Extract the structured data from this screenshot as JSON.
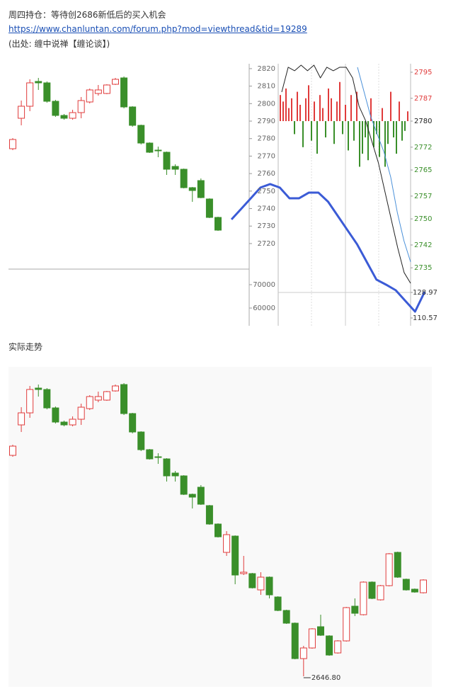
{
  "header": {
    "title": "周四持仓：等待创2686新低后的买入机会",
    "link": "https://www.chanluntan.com/forum.php?mod=viewthread&tid=19289",
    "source": "(出处: 缠中说禅【缠论谈】)"
  },
  "section_label": "实际走势",
  "chart_data": [
    {
      "type": "intraday",
      "ylim": [
        2705.4,
        2822.8
      ],
      "yticks": [
        2820,
        2810,
        2800,
        2790,
        2780,
        2770,
        2760,
        2750,
        2740,
        2730,
        2720
      ],
      "y2lim": [
        2734.6,
        2797.6
      ],
      "y2ticks": [
        2795,
        2787,
        2780,
        2772,
        2765,
        2757,
        2750,
        2742,
        2735
      ],
      "histogram_base": 2780,
      "volume_lim": [
        52424,
        76667
      ],
      "volume_ticks": [
        70000,
        60000
      ],
      "y2_lower_lim": [
        104.95,
        145.8
      ],
      "y2_lower_ticks": [
        128.97,
        110.57
      ],
      "up_color": "#e03b3b",
      "down_color": "#3a8f2a",
      "forecast_line": {
        "color": "#3b5bd6",
        "values": [
          2733.8,
          2739.8,
          2745.9,
          2752.0,
          2754.0,
          2752.0,
          2745.9,
          2745.9,
          2749.1,
          2749.1,
          2743.9,
          2735.8,
          2727.7,
          2719.6,
          2709.5,
          2699.4,
          2696.5,
          2693.3,
          2687.2,
          2681.1,
          2692.5
        ]
      },
      "price_line": {
        "color": "#222222",
        "values": [
          2806.6,
          2820.8,
          2818.8,
          2822.0,
          2818.8,
          2822.0,
          2814.7,
          2820.8,
          2818.8,
          2820.8,
          2820.8,
          2814.7,
          2798.5,
          2790.4,
          2778.3,
          2766.2,
          2750.0,
          2733.8,
          2717.6,
          2703.4,
          2697.3
        ]
      },
      "avg_line": {
        "color": "#4a90d9",
        "values": [
          2820.8,
          2806.6,
          2792.5,
          2782.3,
          2772.2,
          2758.1,
          2737.8,
          2721.6,
          2709.5
        ]
      },
      "histogram": {
        "values": [
          2788,
          2786,
          2790,
          2784,
          2787,
          2776,
          2789,
          2785,
          2772,
          2787,
          2791,
          2774,
          2786,
          2770,
          2788,
          2784,
          2775,
          2790,
          2787,
          2773,
          2786,
          2792,
          2776,
          2785,
          2771,
          2788,
          2774,
          2789,
          2766,
          2770,
          2775,
          2768,
          2787,
          2772,
          2776,
          2769,
          2784,
          2766,
          2773,
          2789,
          2775,
          2770,
          2786,
          2774,
          2777,
          2783
        ]
      }
    },
    {
      "type": "candlestick",
      "up_color": "#e03b3b",
      "down_color": "#3a8f2a",
      "open": [
        2771.6,
        2788.8,
        2795.6,
        2809.6,
        2808.8,
        2798.4,
        2790.4,
        2788.8,
        2792.0,
        2798.0,
        2802.8,
        2802.8,
        2808.0,
        2811.6,
        2795.2,
        2784.8,
        2774.8,
        2770.8,
        2769.6,
        2761.6,
        2760.0,
        2749.6,
        2753.6,
        2743.2,
        2732.8,
        2716.8,
        2726.0,
        2704.8,
        2704.8,
        2695.6,
        2702.8,
        2691.6,
        2684.0,
        2676.8,
        2656.8,
        2662.8,
        2674.8,
        2669.6,
        2660.0,
        2666.8,
        2686.4,
        2681.6,
        2700.0,
        2690.0,
        2698.0,
        2716.8,
        2701.6,
        2696.0,
        2694.0
      ],
      "high": [
        2777.6,
        2798.8,
        2810.8,
        2811.6,
        2809.6,
        2799.2,
        2791.2,
        2793.6,
        2800.8,
        2805.6,
        2807.6,
        2808.0,
        2811.6,
        2812.4,
        2795.6,
        2785.2,
        2775.2,
        2772.8,
        2770.0,
        2762.8,
        2760.4,
        2750.0,
        2754.8,
        2743.6,
        2733.2,
        2728.8,
        2726.4,
        2714.8,
        2705.2,
        2705.6,
        2703.2,
        2692.0,
        2684.4,
        2677.2,
        2664.0,
        2674.0,
        2681.6,
        2670.0,
        2667.2,
        2686.0,
        2690.8,
        2700.4,
        2700.4,
        2698.4,
        2716.4,
        2717.2,
        2702.0,
        2696.4,
        2701.6
      ],
      "low": [
        2770.8,
        2784.8,
        2792.8,
        2804.8,
        2797.6,
        2789.6,
        2788.0,
        2788.0,
        2788.8,
        2797.2,
        2801.6,
        2802.4,
        2807.6,
        2794.4,
        2784.0,
        2774.0,
        2769.2,
        2766.8,
        2756.8,
        2756.8,
        2749.2,
        2741.6,
        2743.6,
        2732.4,
        2725.2,
        2714.8,
        2698.8,
        2704.0,
        2696.4,
        2692.8,
        2690.8,
        2683.6,
        2676.4,
        2656.4,
        2646.8,
        2662.4,
        2669.6,
        2658.4,
        2659.6,
        2666.4,
        2680.8,
        2681.2,
        2690.4,
        2689.6,
        2697.6,
        2702.4,
        2695.2,
        2694.0,
        2693.6
      ],
      "close": [
        2776.8,
        2795.6,
        2808.8,
        2808.8,
        2798.4,
        2790.4,
        2788.8,
        2792.0,
        2798.8,
        2804.8,
        2804.8,
        2807.6,
        2810.8,
        2795.2,
        2784.8,
        2774.8,
        2769.6,
        2770.4,
        2760.0,
        2760.0,
        2749.6,
        2748.0,
        2744.0,
        2732.8,
        2725.6,
        2726.8,
        2704.0,
        2705.6,
        2696.8,
        2702.8,
        2692.8,
        2684.0,
        2676.8,
        2656.8,
        2662.8,
        2673.6,
        2670.0,
        2658.8,
        2666.8,
        2685.6,
        2682.4,
        2700.0,
        2690.8,
        2698.0,
        2716.0,
        2702.8,
        2695.6,
        2694.4,
        2701.2
      ],
      "annotation": {
        "value": 2646.8,
        "label": "2646.80"
      }
    }
  ]
}
